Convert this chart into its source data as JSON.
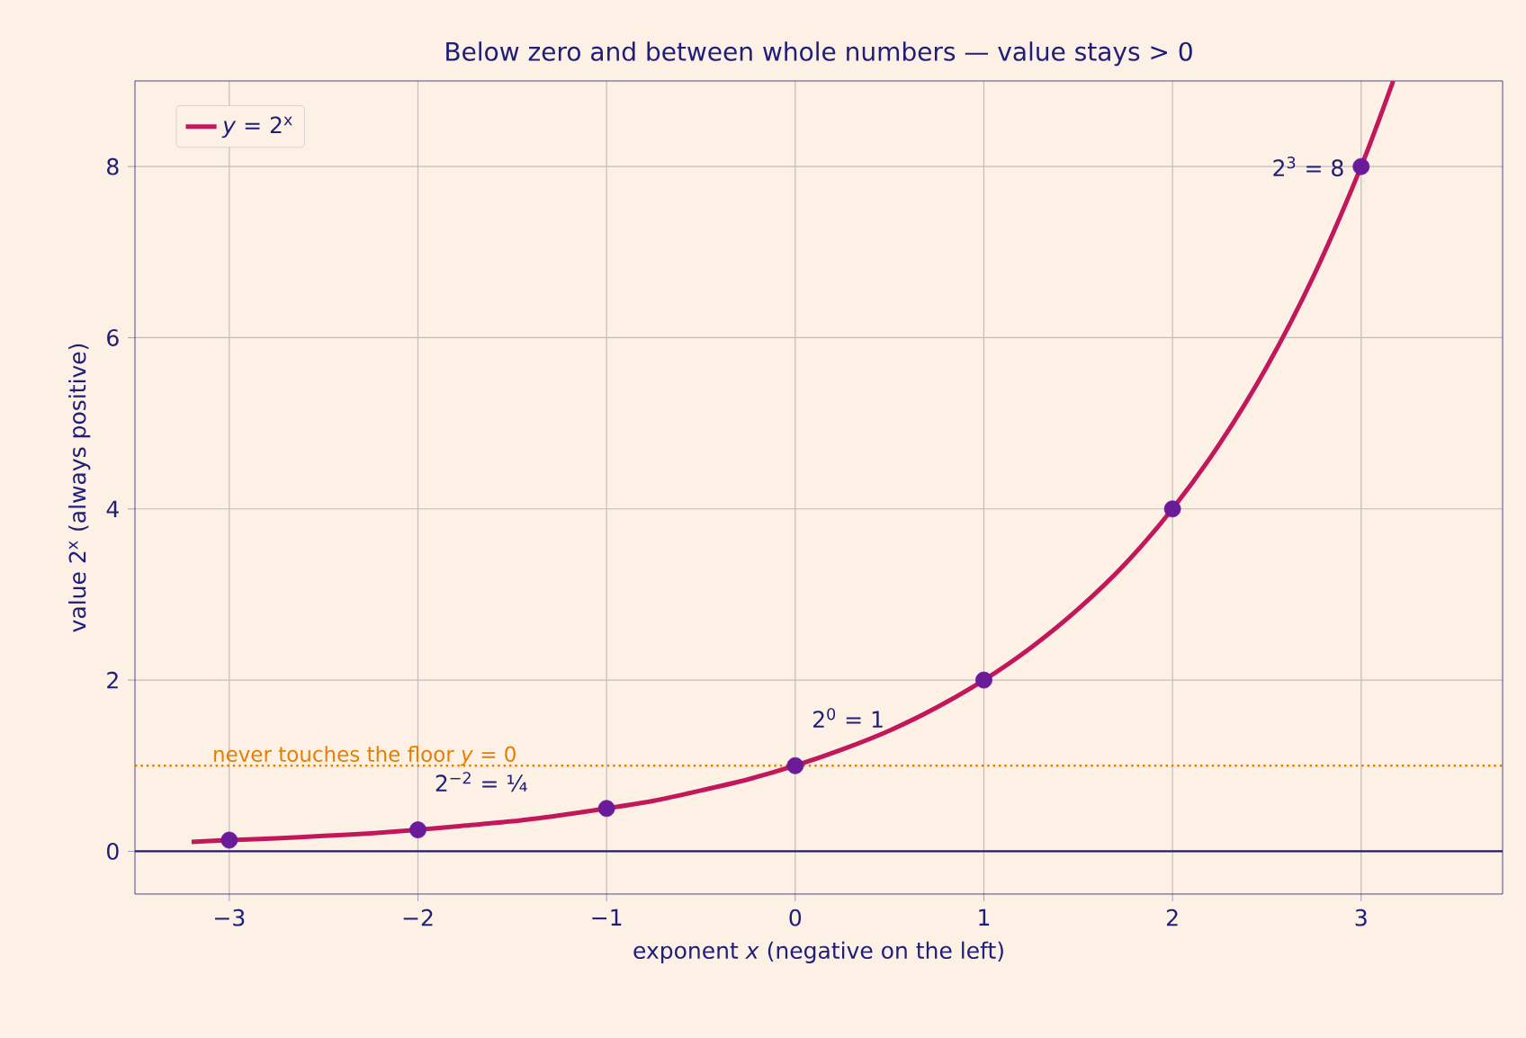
{
  "chart_data": {
    "type": "line",
    "title": "Below zero and between whole numbers — value stays > 0",
    "xlabel": "exponent *x* (negative on the left)",
    "ylabel": "value 2$^{x}$ (always positive)",
    "series": [
      {
        "type": "line",
        "name": "*y* = 2$^{x}$",
        "color": "#c2185b",
        "x": [
          -3.2,
          -3,
          -2.75,
          -2.5,
          -2.25,
          -2,
          -1.75,
          -1.5,
          -1.25,
          -1,
          -0.75,
          -0.5,
          -0.25,
          0,
          0.25,
          0.5,
          0.75,
          1,
          1.25,
          1.5,
          1.75,
          2,
          2.25,
          2.5,
          2.75,
          3,
          3.17
        ],
        "values": [
          0.11,
          0.13,
          0.15,
          0.18,
          0.21,
          0.25,
          0.3,
          0.35,
          0.42,
          0.5,
          0.59,
          0.71,
          0.84,
          1,
          1.19,
          1.41,
          1.68,
          2,
          2.38,
          2.83,
          3.36,
          4,
          4.76,
          5.66,
          6.73,
          8,
          9
        ]
      },
      {
        "type": "scatter",
        "color": "#6a1b9a",
        "marker": "circle",
        "x": [
          -3,
          -2,
          -1,
          0,
          1,
          2,
          3
        ],
        "values": [
          0.13,
          0.25,
          0.5,
          1,
          2,
          4,
          8
        ]
      }
    ],
    "xlim": [
      -3.5,
      3.75
    ],
    "ylim": [
      -0.5,
      9
    ],
    "xticks": [
      {
        "value": -3,
        "label": "−3"
      },
      {
        "value": -2,
        "label": "−2"
      },
      {
        "value": -1,
        "label": "−1"
      },
      0,
      1,
      2,
      3
    ],
    "yticks": [
      0,
      2,
      4,
      6,
      8
    ],
    "ref_lines": [
      {
        "axis": "y",
        "value": 0,
        "color": "#1f1f7a",
        "line_style": "solid"
      },
      {
        "axis": "y",
        "value": 1,
        "color": "#e67e00",
        "line_style": "dotted"
      }
    ],
    "annotations": [
      "never touches the floor *y* = 0",
      {
        "text": "2$^{−2}$ = ¼",
        "x": -2,
        "y": 0.25
      },
      {
        "text": "2$^{0}$ = 1",
        "x": 0,
        "y": 1
      },
      {
        "text": "2$^{3}$ = 8",
        "x": 3,
        "y": 8
      }
    ],
    "grid": true,
    "legend": "top left"
  }
}
